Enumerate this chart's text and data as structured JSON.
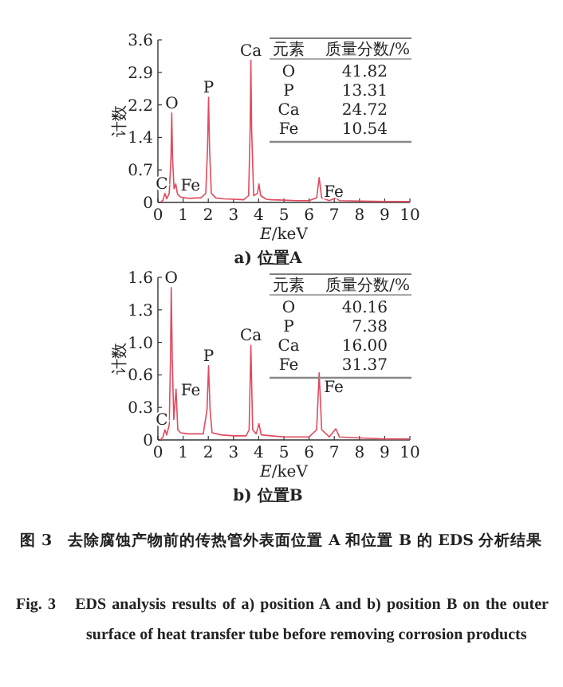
{
  "chart_data": [
    {
      "type": "line",
      "title": "a) 位置A",
      "xlabel": "*E*/keV",
      "ylabel": "计数",
      "color": "#e24a5e",
      "xlim": [
        0,
        10
      ],
      "ylim": [
        0,
        3.6
      ],
      "xticks": [
        0,
        1,
        2,
        3,
        4,
        5,
        6,
        7,
        8,
        9,
        10
      ],
      "yticks": [
        0,
        {
          "value": 0.72,
          "label": "0.7"
        },
        {
          "value": 1.44,
          "label": "1.4"
        },
        {
          "value": 2.16,
          "label": "2.2"
        },
        {
          "value": 2.88,
          "label": "2.9"
        },
        3.6
      ],
      "x": [
        0.1,
        0.2,
        0.28,
        0.35,
        0.45,
        0.52,
        0.55,
        0.58,
        0.64,
        0.71,
        0.78,
        0.9,
        1.1,
        1.3,
        1.5,
        1.7,
        1.9,
        1.97,
        2.01,
        2.05,
        2.12,
        2.3,
        2.6,
        3.0,
        3.4,
        3.6,
        3.66,
        3.69,
        3.72,
        3.8,
        3.95,
        4.01,
        4.08,
        4.3,
        4.5,
        5.0,
        5.5,
        6.0,
        6.3,
        6.4,
        6.5,
        6.8,
        7.06,
        7.2,
        8.0,
        9.0,
        10.0
      ],
      "values": [
        0.0,
        0.05,
        0.2,
        0.08,
        0.2,
        1.0,
        1.98,
        1.0,
        0.3,
        0.41,
        0.18,
        0.12,
        0.1,
        0.09,
        0.1,
        0.1,
        0.2,
        1.2,
        2.33,
        1.2,
        0.2,
        0.1,
        0.08,
        0.07,
        0.06,
        0.15,
        1.6,
        3.15,
        1.6,
        0.15,
        0.2,
        0.41,
        0.15,
        0.07,
        0.06,
        0.05,
        0.04,
        0.04,
        0.1,
        0.55,
        0.1,
        0.04,
        0.1,
        0.04,
        0.03,
        0.02,
        0.02
      ],
      "annotations": [
        {
          "text": "C",
          "x": 0.28,
          "y": 0.2
        },
        {
          "text": "O",
          "x": 0.55,
          "y": 1.98
        },
        {
          "text": "Fe",
          "x": 0.71,
          "y": 0.41
        },
        {
          "text": "P",
          "x": 2.01,
          "y": 2.33
        },
        {
          "text": "Ca",
          "x": 3.69,
          "y": 3.15
        },
        {
          "text": "Fe",
          "x": 6.4,
          "y": 0.55
        },
        "元素",
        "质量分数/%",
        "O",
        "41.82",
        "P",
        "13.31",
        "Ca",
        "24.72",
        "Fe",
        "10.54"
      ]
    },
    {
      "type": "line",
      "title": "b) 位置B",
      "xlabel": "*E*/keV",
      "ylabel": "计数",
      "color": "#e24a5e",
      "xlim": [
        0,
        10
      ],
      "ylim": [
        0,
        1.6
      ],
      "xticks": [
        0,
        1,
        2,
        3,
        4,
        5,
        6,
        7,
        8,
        9,
        10
      ],
      "yticks": [
        0,
        {
          "value": 0.32,
          "label": "0.3"
        },
        {
          "value": 0.64,
          "label": "0.6"
        },
        {
          "value": 0.96,
          "label": "1.0"
        },
        {
          "value": 1.28,
          "label": "1.3"
        },
        1.6
      ],
      "x": [
        0.1,
        0.2,
        0.28,
        0.35,
        0.45,
        0.5,
        0.53,
        0.57,
        0.63,
        0.72,
        0.79,
        0.9,
        1.2,
        1.5,
        1.8,
        1.95,
        2.01,
        2.07,
        2.15,
        2.5,
        3.0,
        3.5,
        3.62,
        3.69,
        3.76,
        3.9,
        4.01,
        4.1,
        4.5,
        5.0,
        5.5,
        6.0,
        6.3,
        6.4,
        6.5,
        6.8,
        7.06,
        7.2,
        8.0,
        9.0,
        10.0
      ],
      "values": [
        0.0,
        0.03,
        0.1,
        0.05,
        0.15,
        0.8,
        1.5,
        0.8,
        0.2,
        0.5,
        0.1,
        0.07,
        0.06,
        0.06,
        0.06,
        0.3,
        0.73,
        0.3,
        0.07,
        0.05,
        0.04,
        0.04,
        0.1,
        0.93,
        0.1,
        0.06,
        0.16,
        0.05,
        0.04,
        0.03,
        0.03,
        0.03,
        0.1,
        0.66,
        0.1,
        0.03,
        0.11,
        0.03,
        0.02,
        0.01,
        0.01
      ],
      "annotations": [
        {
          "text": "C",
          "x": 0.28,
          "y": 0.1
        },
        {
          "text": "O",
          "x": 0.53,
          "y": 1.5
        },
        {
          "text": "Fe",
          "x": 0.72,
          "y": 0.5
        },
        {
          "text": "P",
          "x": 2.01,
          "y": 0.73
        },
        {
          "text": "Ca",
          "x": 3.69,
          "y": 0.93
        },
        {
          "text": "Fe",
          "x": 6.4,
          "y": 0.66
        },
        "元素",
        "质量分数/%",
        "O",
        "40.16",
        "P",
        "7.38",
        "Ca",
        "16.00",
        "Fe",
        "31.37",
        "图 3　去除腐蚀产物前的传热管外表面位置 A 和位置 B 的 EDS 分析结果",
        "Fig. 3　EDS analysis results of a) position A and b) position B on the outer surface of heat transfer tube before removing corrosion products"
      ]
    }
  ]
}
